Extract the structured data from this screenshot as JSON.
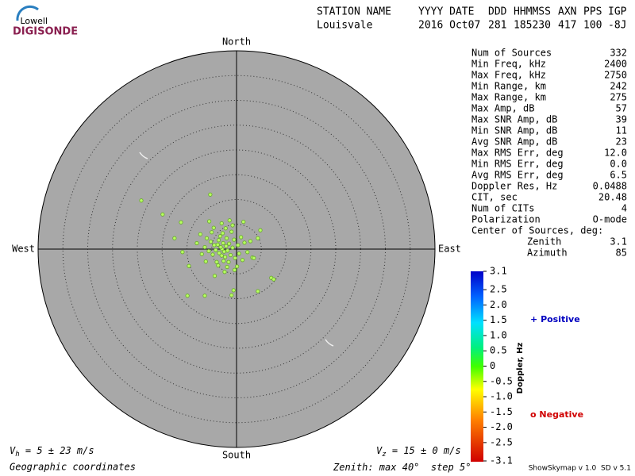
{
  "logo": {
    "top": "Lowell",
    "bottom": "DIGISONDE"
  },
  "header": {
    "row1": [
      "STATION NAME",
      "YYYY DATE",
      "DDD",
      "HHMMSS",
      "AXN",
      "PPS",
      "IGP"
    ],
    "row2": [
      "Louisvale",
      "2016 Oct07",
      "281",
      "185230",
      "417",
      "100",
      "-8J"
    ]
  },
  "compass": {
    "north": "North",
    "south": "South",
    "east": "East",
    "west": "West"
  },
  "stats": [
    [
      "Num of Sources",
      "332"
    ],
    [
      "Min Freq, kHz",
      "2400"
    ],
    [
      "Max Freq, kHz",
      "2750"
    ],
    [
      "Min Range, km",
      "242"
    ],
    [
      "Max Range, km",
      "275"
    ],
    [
      "Max Amp, dB",
      "57"
    ],
    [
      "Max SNR Amp, dB",
      "39"
    ],
    [
      "Min SNR Amp, dB",
      "11"
    ],
    [
      "Avg SNR Amp, dB",
      "23"
    ],
    [
      "Max RMS Err, deg",
      "12.0"
    ],
    [
      "Min RMS Err, deg",
      "0.0"
    ],
    [
      "Avg RMS Err, deg",
      "6.5"
    ],
    [
      "Doppler Res, Hz",
      "0.0488"
    ],
    [
      "CIT, sec",
      "20.48"
    ],
    [
      "Num of CITs",
      "4"
    ],
    [
      "Polarization",
      "O-mode"
    ]
  ],
  "center": {
    "title": "Center of Sources, deg:",
    "zenith_label": "Zenith",
    "zenith": "3.1",
    "azimuth_label": "Azimuth",
    "azimuth": "85"
  },
  "colorbar": {
    "label": "Doppler, Hz",
    "lim": [
      -3.1,
      3.1
    ],
    "ticks": [
      3.1,
      2.5,
      {
        "value": 2,
        "label": "2.0"
      },
      1.5,
      {
        "value": 1,
        "label": "1.0"
      },
      0.5,
      0,
      -0.5,
      {
        "value": -1,
        "label": "-1.0"
      },
      -1.5,
      {
        "value": -2,
        "label": "-2.0"
      },
      -2.5,
      -3.1
    ]
  },
  "legend": {
    "positive_symbol": "+",
    "positive": "Positive",
    "negative_symbol": "o",
    "negative": "Negative"
  },
  "footer": {
    "vh": [
      "V",
      "h",
      " = 5 ± 23 m/s"
    ],
    "vz": [
      "V",
      "z",
      " = 15 ± 0 m/s"
    ],
    "coords": "Geographic coordinates",
    "version": "ShowSkymap v 1.0  SD v 5.1"
  },
  "zenith_scale": {
    "label": "Zenith: max",
    "max": 40,
    "step_label": "step",
    "step": 5,
    "unit": "°"
  },
  "skymap": {
    "points": [
      [
        -2.9,
        0
      ],
      [
        -3.2,
        0.4
      ],
      [
        -2.5,
        -0.5
      ],
      [
        -3.5,
        -0.8
      ],
      [
        -2.1,
        0.6
      ],
      [
        -3.8,
        0.9
      ],
      [
        -2.7,
        1.2
      ],
      [
        -1.8,
        -0.3
      ],
      [
        -4.2,
        -0.2
      ],
      [
        -3,
        -1.3
      ],
      [
        -2.3,
        -1.6
      ],
      [
        -3.6,
        1.8
      ],
      [
        -1.5,
        1.1
      ],
      [
        -4.5,
        0.8
      ],
      [
        -2,
        2.2
      ],
      [
        -4.8,
        -1.1
      ],
      [
        -1.2,
        -1.2
      ],
      [
        -3.3,
        2.6
      ],
      [
        -2.6,
        -2.4
      ],
      [
        -5.2,
        1.5
      ],
      [
        -0.8,
        0.3
      ],
      [
        -5.6,
        -0.4
      ],
      [
        -1.6,
        -2.6
      ],
      [
        -4,
        -2.6
      ],
      [
        -2.8,
        3.2
      ],
      [
        -0.5,
        1.9
      ],
      [
        -6,
        2.2
      ],
      [
        -1,
        3.5
      ],
      [
        -3.7,
        -3.3
      ],
      [
        -0.3,
        -1.8
      ],
      [
        -6.4,
        0.4
      ],
      [
        -2.2,
        4.2
      ],
      [
        0.3,
        0.8
      ],
      [
        -5,
        3.4
      ],
      [
        -1.9,
        -3.6
      ],
      [
        0.5,
        -0.9
      ],
      [
        -4.6,
        4.3
      ],
      [
        -0.8,
        4.8
      ],
      [
        -7,
        -1
      ],
      [
        0.9,
        2.4
      ],
      [
        -3,
        5.2
      ],
      [
        -6.2,
        -2.5
      ],
      [
        1.2,
        -2.2
      ],
      [
        -5.5,
        5.6
      ],
      [
        -1.4,
        5.8
      ],
      [
        -7.3,
        3
      ],
      [
        -2.4,
        -4.6
      ],
      [
        1.6,
        1.3
      ],
      [
        -8,
        1.2
      ],
      [
        0.1,
        -3.5
      ],
      [
        -0.4,
        -4.2
      ],
      [
        2.2,
        -0.6
      ],
      [
        1.4,
        5.5
      ],
      [
        2.8,
        1.6
      ],
      [
        3.2,
        -1.7
      ],
      [
        -4.4,
        -5.4
      ],
      [
        -5.3,
        11
      ],
      [
        -19.2,
        9.8
      ],
      [
        -14.9,
        7
      ],
      [
        -9.9,
        -9.4
      ],
      [
        -6.4,
        -9.4
      ],
      [
        -1,
        -9.3
      ],
      [
        -0.6,
        -8.3
      ],
      [
        4.3,
        -8.5
      ],
      [
        7,
        -5.8
      ],
      [
        7.5,
        -6.1
      ],
      [
        4.8,
        3.8
      ],
      [
        4.3,
        2.2
      ],
      [
        3.5,
        -1.8
      ],
      [
        -11.2,
        5.4
      ],
      [
        -10.9,
        -0.6
      ],
      [
        -9.6,
        -3.4
      ],
      [
        -12.5,
        2.2
      ]
    ]
  }
}
